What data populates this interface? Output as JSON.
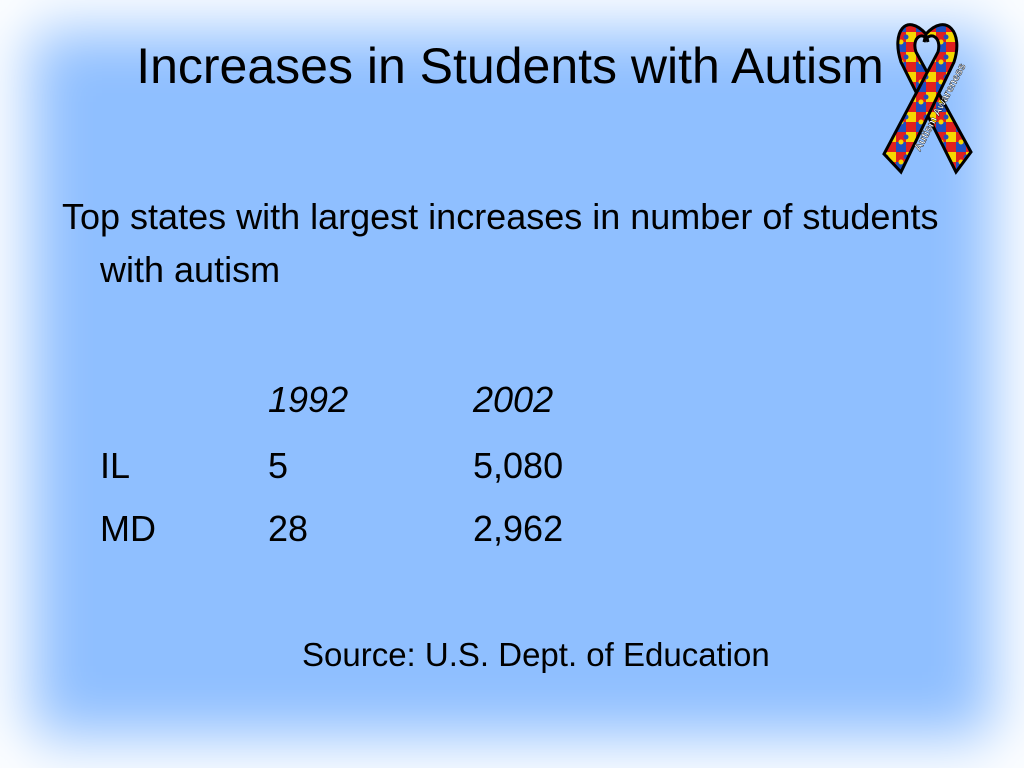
{
  "title": "Increases in Students with Autism",
  "body": "Top states with largest increases in number of students with autism",
  "table": {
    "columns": [
      "1992",
      "2002"
    ],
    "rows": [
      [
        "IL",
        "5",
        "5,080"
      ],
      [
        "MD",
        "28",
        "2,962"
      ]
    ]
  },
  "source": "Source: U.S. Dept. of Education",
  "ribbon": {
    "label": "Autism Awareness"
  }
}
